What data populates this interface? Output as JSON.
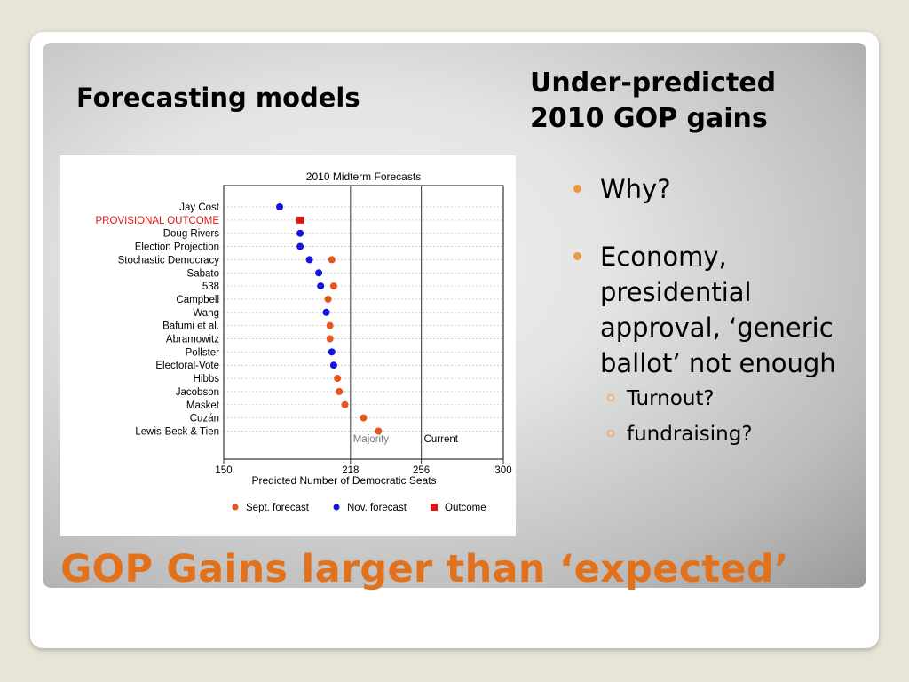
{
  "slide": {
    "heading_left": "Forecasting models",
    "heading_right_line1": "Under-predicted",
    "heading_right_line2": "2010 GOP gains",
    "title": "GOP Gains larger than ‘expected’",
    "bullets": [
      {
        "text": "Why?"
      },
      {
        "text": "Economy, presidential approval, ‘generic ballot’ not enough"
      }
    ],
    "sub_bullets": [
      {
        "text": "Turnout?"
      },
      {
        "text": "fundraising?"
      }
    ],
    "accent_color": "#e2711c",
    "bullet_color": "#e89a3c"
  },
  "chart_data": {
    "type": "scatter",
    "title": "2010 Midterm Forecasts",
    "xlabel": "Predicted Number of Democratic Seats",
    "xlim": [
      150,
      300
    ],
    "xticks": [
      150,
      218,
      256,
      300
    ],
    "reference_lines": [
      {
        "x": 218,
        "label": "Majority"
      },
      {
        "x": 256,
        "label": "Current"
      }
    ],
    "categories": [
      "Jay Cost",
      "PROVISIONAL OUTCOME",
      "Doug Rivers",
      "Election Projection",
      "Stochastic Democracy",
      "Sabato",
      "538",
      "Campbell",
      "Wang",
      "Bafumi et al.",
      "Abramowitz",
      "Pollster",
      "Electoral-Vote",
      "Hibbs",
      "Jacobson",
      "Masket",
      "Cuzán",
      "Lewis-Beck & Tien"
    ],
    "highlight_category": "PROVISIONAL OUTCOME",
    "series": [
      {
        "name": "Sept. forecast",
        "color": "#e8541c",
        "marker": "circle",
        "values": [
          null,
          null,
          null,
          null,
          208,
          null,
          209,
          206,
          null,
          207,
          207,
          null,
          null,
          211,
          212,
          215,
          225,
          233
        ]
      },
      {
        "name": "Nov. forecast",
        "color": "#1414e0",
        "marker": "circle",
        "values": [
          180,
          null,
          191,
          191,
          196,
          201,
          202,
          null,
          205,
          null,
          null,
          208,
          209,
          null,
          null,
          null,
          null,
          null
        ]
      },
      {
        "name": "Outcome",
        "color": "#e01414",
        "marker": "square",
        "values": [
          null,
          191,
          null,
          null,
          null,
          null,
          null,
          null,
          null,
          null,
          null,
          null,
          null,
          null,
          null,
          null,
          null,
          null
        ]
      }
    ],
    "legend_position": "bottom",
    "grid": "horizontal dotted"
  }
}
